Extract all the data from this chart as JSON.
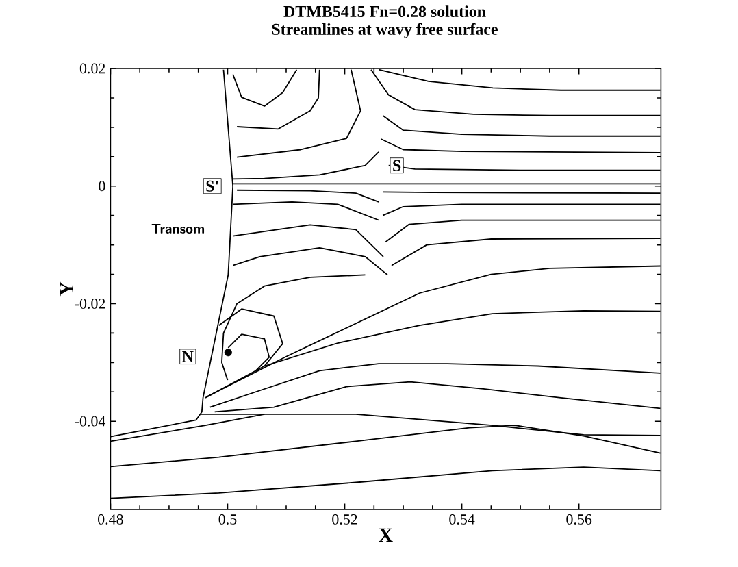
{
  "chart_data": {
    "type": "line",
    "title": "DTMB5415 Fn=0.28 solution",
    "subtitle": "Streamlines at wavy free surface",
    "xlabel": "X",
    "ylabel": "Y",
    "xlim": [
      0.48,
      0.574
    ],
    "ylim": [
      -0.055,
      0.02
    ],
    "xticks": [
      0.48,
      0.5,
      0.52,
      0.54,
      0.56
    ],
    "yticks": [
      -0.04,
      -0.02,
      0,
      0.02
    ],
    "marker": "none",
    "line_style": "solid",
    "grid": false,
    "annotations": [
      "Transom",
      {
        "text": "S'",
        "x": 0.4974,
        "y": 0
      },
      {
        "text": "S",
        "x": 0.5289,
        "y": 0.0035
      },
      {
        "text": "N",
        "x": 0.4932,
        "y": -0.029
      }
    ],
    "series": [
      {
        "color": "#000000",
        "x": [
          0.48,
          0.4946,
          0.4956,
          0.4958,
          0.5001,
          0.5009,
          0.4993
        ],
        "values": [
          -0.0426,
          -0.0398,
          -0.0384,
          -0.036,
          -0.0151,
          0,
          0.0198
        ]
      },
      {
        "color": "#000000",
        "x": [
          0.5258,
          0.5343,
          0.5453,
          0.5569,
          0.5739
        ],
        "values": [
          0.0198,
          0.0178,
          0.0167,
          0.0163,
          0.0163
        ]
      },
      {
        "color": "#000000",
        "x": [
          0.5245,
          0.5275,
          0.532,
          0.542,
          0.555,
          0.5739
        ],
        "values": [
          0.0198,
          0.0155,
          0.013,
          0.0122,
          0.012,
          0.012
        ]
      },
      {
        "color": "#000000",
        "x": [
          0.5265,
          0.53,
          0.54,
          0.555,
          0.5739
        ],
        "values": [
          0.012,
          0.0095,
          0.0088,
          0.0085,
          0.0085
        ]
      },
      {
        "color": "#000000",
        "x": [
          0.5262,
          0.53,
          0.54,
          0.5739
        ],
        "values": [
          0.008,
          0.0062,
          0.0059,
          0.0057
        ]
      },
      {
        "color": "#000000",
        "x": [
          0.5275,
          0.532,
          0.55,
          0.5739
        ],
        "values": [
          0.0035,
          0.0029,
          0.0027,
          0.0027
        ]
      },
      {
        "color": "#000000",
        "x": [
          0.5009,
          0.5739
        ],
        "values": [
          0.0004,
          0.0004
        ]
      },
      {
        "color": "#000000",
        "x": [
          0.5265,
          0.535,
          0.5739
        ],
        "values": [
          -0.001,
          -0.0011,
          -0.0012
        ]
      },
      {
        "color": "#000000",
        "x": [
          0.5265,
          0.53,
          0.54,
          0.5739
        ],
        "values": [
          -0.005,
          -0.0035,
          -0.0031,
          -0.0031
        ]
      },
      {
        "color": "#000000",
        "x": [
          0.527,
          0.531,
          0.54,
          0.5739
        ],
        "values": [
          -0.0095,
          -0.0065,
          -0.0058,
          -0.0058
        ]
      },
      {
        "color": "#000000",
        "x": [
          0.528,
          0.534,
          0.545,
          0.5739
        ],
        "values": [
          -0.0135,
          -0.01,
          -0.009,
          -0.0089
        ]
      },
      {
        "color": "#000000",
        "x": [
          0.4965,
          0.51,
          0.5328,
          0.545,
          0.555,
          0.5739
        ],
        "values": [
          -0.0358,
          -0.029,
          -0.0182,
          -0.015,
          -0.014,
          -0.0136
        ]
      },
      {
        "color": "#000000",
        "x": [
          0.4962,
          0.5063,
          0.5188,
          0.5328,
          0.5452,
          0.5608,
          0.5739
        ],
        "values": [
          -0.036,
          -0.0306,
          -0.0267,
          -0.0237,
          -0.0217,
          -0.0212,
          -0.0213
        ]
      },
      {
        "color": "#000000",
        "x": [
          0.497,
          0.5063,
          0.5157,
          0.5258,
          0.5375,
          0.553,
          0.5739
        ],
        "values": [
          -0.0376,
          -0.0345,
          -0.0314,
          -0.0302,
          -0.0302,
          -0.0306,
          -0.0318
        ]
      },
      {
        "color": "#000000",
        "x": [
          0.4978,
          0.5079,
          0.5203,
          0.5312,
          0.5437,
          0.5569,
          0.5739
        ],
        "values": [
          -0.0384,
          -0.0376,
          -0.0341,
          -0.0333,
          -0.0345,
          -0.036,
          -0.0378
        ]
      },
      {
        "color": "#000000",
        "x": [
          0.4954,
          0.5063,
          0.5219,
          0.5452,
          0.5608,
          0.5739
        ],
        "values": [
          -0.0388,
          -0.0388,
          -0.0388,
          -0.0407,
          -0.0423,
          -0.0424
        ]
      },
      {
        "color": "#000000",
        "x": [
          0.48,
          0.4962,
          0.5063
        ],
        "values": [
          -0.0434,
          -0.0407,
          -0.0388
        ]
      },
      {
        "color": "#000000",
        "x": [
          0.48,
          0.4985,
          0.5219,
          0.5413,
          0.5491,
          0.5608,
          0.5739
        ],
        "values": [
          -0.0477,
          -0.0461,
          -0.0434,
          -0.0411,
          -0.0407,
          -0.0425,
          -0.0454
        ]
      },
      {
        "color": "#000000",
        "x": [
          0.48,
          0.4985,
          0.5219,
          0.5452,
          0.5608,
          0.5739
        ],
        "values": [
          -0.0531,
          -0.0522,
          -0.0504,
          -0.0484,
          -0.0478,
          -0.0484
        ]
      },
      {
        "color": "#000000",
        "x": [
          0.5118,
          0.5094,
          0.5063,
          0.5024,
          0.5009
        ],
        "values": [
          0.0198,
          0.0159,
          0.0136,
          0.0151,
          0.019
        ]
      },
      {
        "color": "#000000",
        "x": [
          0.5157,
          0.5155,
          0.5141,
          0.5086,
          0.5016
        ],
        "values": [
          0.0198,
          0.015,
          0.0128,
          0.0097,
          0.0101
        ]
      },
      {
        "color": "#000000",
        "x": [
          0.5211,
          0.5227,
          0.5203,
          0.5125,
          0.5016
        ],
        "values": [
          0.0198,
          0.0128,
          0.0081,
          0.0062,
          0.0049
        ]
      },
      {
        "color": "#000000",
        "x": [
          0.5258,
          0.5235,
          0.5157,
          0.5063,
          0.5009
        ],
        "values": [
          0.0058,
          0.0035,
          0.0019,
          0.0013,
          0.0012
        ]
      },
      {
        "color": "#000000",
        "x": [
          0.5258,
          0.5219,
          0.5141,
          0.5016
        ],
        "values": [
          -0.0027,
          -0.0012,
          -0.0008,
          -0.0007
        ]
      },
      {
        "color": "#000000",
        "x": [
          0.5258,
          0.5188,
          0.511,
          0.5009
        ],
        "values": [
          -0.0058,
          -0.0031,
          -0.0027,
          -0.0031
        ]
      },
      {
        "color": "#000000",
        "x": [
          0.5266,
          0.5219,
          0.5141,
          0.5009
        ],
        "values": [
          -0.012,
          -0.0074,
          -0.0066,
          -0.0085
        ]
      },
      {
        "color": "#000000",
        "x": [
          0.5273,
          0.5235,
          0.5157,
          0.5055,
          0.5009
        ],
        "values": [
          -0.0151,
          -0.012,
          -0.0105,
          -0.012,
          -0.0135
        ]
      },
      {
        "color": "#000000",
        "x": [
          0.5235,
          0.5141,
          0.5063,
          0.5016,
          0.4993,
          0.499,
          0.5
        ],
        "values": [
          -0.0151,
          -0.0155,
          -0.017,
          -0.02,
          -0.025,
          -0.03,
          -0.033
        ]
      },
      {
        "color": "#000000",
        "x": [
          0.4985,
          0.5024,
          0.5079,
          0.5094,
          0.5063
        ],
        "values": [
          -0.0237,
          -0.0209,
          -0.0221,
          -0.0268,
          -0.0306
        ]
      },
      {
        "color": "#000000",
        "x": [
          0.5001,
          0.5024,
          0.5063,
          0.5071,
          0.5048
        ],
        "values": [
          -0.0275,
          -0.0252,
          -0.026,
          -0.0291,
          -0.0314
        ]
      },
      {
        "type": "scatter",
        "marker": "circle",
        "color": "#000000",
        "x": [
          0.5001
        ],
        "values": [
          -0.0283
        ]
      }
    ]
  }
}
